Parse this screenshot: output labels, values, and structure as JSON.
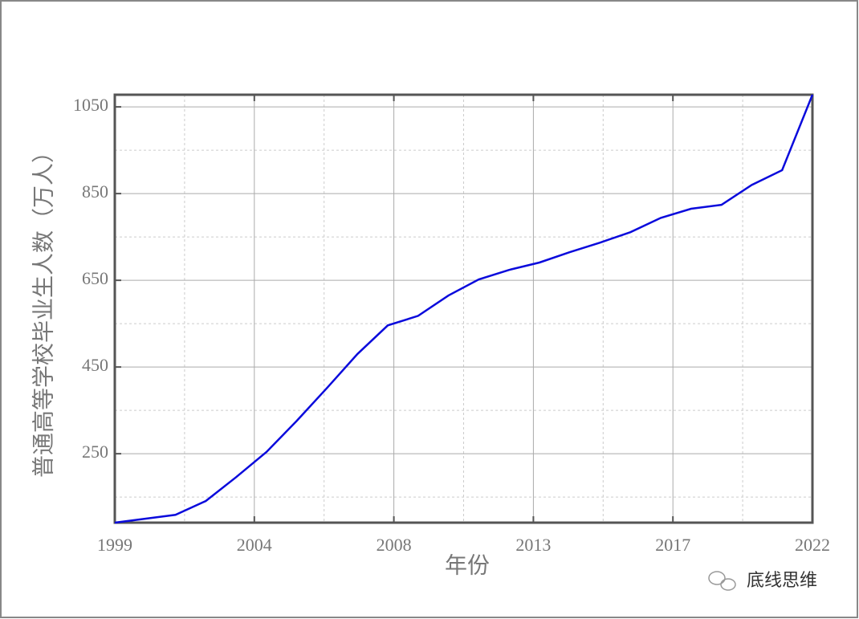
{
  "chart_data": {
    "type": "line",
    "x_label": "年份",
    "y_label": "普通高等学校毕业生人数（万人）",
    "watermark": "底线思维",
    "x": [
      1999,
      2000,
      2001,
      2002,
      2003,
      2004,
      2005,
      2006,
      2007,
      2008,
      2009,
      2010,
      2011,
      2012,
      2013,
      2014,
      2015,
      2016,
      2017,
      2018,
      2019,
      2020,
      2021,
      2022
    ],
    "series": [
      {
        "name": "普通高等学校毕业生人数",
        "color": "#0a0adc",
        "values": [
          91,
          100,
          109,
          141,
          196,
          254,
          326,
          402,
          480,
          546,
          568,
          615,
          652,
          674,
          691,
          715,
          737,
          761,
          794,
          815,
          824,
          870,
          904,
          1078
        ]
      }
    ],
    "xlim": [
      1999,
      2022
    ],
    "xticks": [
      1999,
      {
        "value": 2003.6,
        "label": "2004"
      },
      {
        "value": 2008.2,
        "label": "2008"
      },
      {
        "value": 2012.8,
        "label": "2013"
      },
      {
        "value": 2017.4,
        "label": "2017"
      },
      2022
    ],
    "minor_xticks": [
      2001.3,
      2005.9,
      2010.5,
      2015.1,
      2019.7
    ],
    "ylim": [
      91,
      1078
    ],
    "yticks": [
      250,
      450,
      650,
      850,
      1050
    ],
    "minor_yticks": [
      150,
      350,
      550,
      750,
      950
    ],
    "grid": true
  }
}
